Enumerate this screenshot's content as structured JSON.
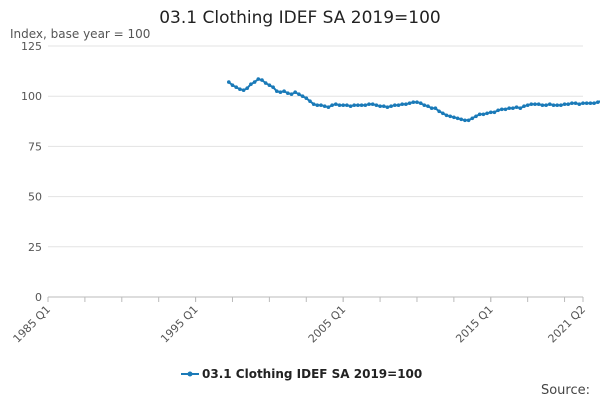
{
  "chart_data": {
    "type": "line",
    "title": "03.1 Clothing IDEF SA 2019=100",
    "ylabel": "Index, base year = 100",
    "xlabel": "",
    "ylim": [
      0,
      125
    ],
    "yticks": [
      0,
      25,
      50,
      75,
      100,
      125
    ],
    "xtick_labels": [
      "1985 Q1",
      "1995 Q1",
      "2005 Q1",
      "2015 Q1",
      "2021 Q2"
    ],
    "grid": true,
    "legend_position": "bottom-center",
    "color": "#1a7ab8",
    "source_label": "Source:",
    "series": [
      {
        "name": "03.1 Clothing IDEF SA 2019=100",
        "start": "1997 Q2",
        "values": [
          107,
          105.5,
          104.5,
          103.5,
          103,
          104,
          106,
          107,
          108.5,
          108,
          106.5,
          105.5,
          104.5,
          102.5,
          102,
          102.5,
          101.5,
          101,
          102,
          101,
          100,
          99,
          97.5,
          96,
          95.5,
          95.5,
          95,
          94.5,
          95.5,
          96,
          95.5,
          95.5,
          95.5,
          95,
          95.5,
          95.5,
          95.5,
          95.5,
          96,
          96,
          95.5,
          95,
          95,
          94.5,
          95,
          95.5,
          95.5,
          96,
          96,
          96.5,
          97,
          97,
          96.5,
          95.5,
          95,
          94,
          94,
          92.5,
          91.5,
          90.5,
          90,
          89.5,
          89,
          88.5,
          88,
          88,
          89,
          90,
          91,
          91,
          91.5,
          92,
          92,
          93,
          93.5,
          93.5,
          94,
          94,
          94.5,
          94,
          95,
          95.5,
          96,
          96,
          96,
          95.5,
          95.5,
          96,
          95.5,
          95.5,
          95.5,
          96,
          96,
          96.5,
          96.5,
          96,
          96.5,
          96.5,
          96.5,
          96.5,
          97,
          97.5,
          98,
          99,
          99.5,
          100,
          100.5,
          100.5,
          100.5,
          100,
          100,
          100,
          100,
          100,
          100,
          100.5,
          100.5,
          100.5,
          101,
          100,
          98.5,
          97.5,
          98.5,
          99,
          98,
          95,
          97,
          99
        ]
      }
    ]
  }
}
